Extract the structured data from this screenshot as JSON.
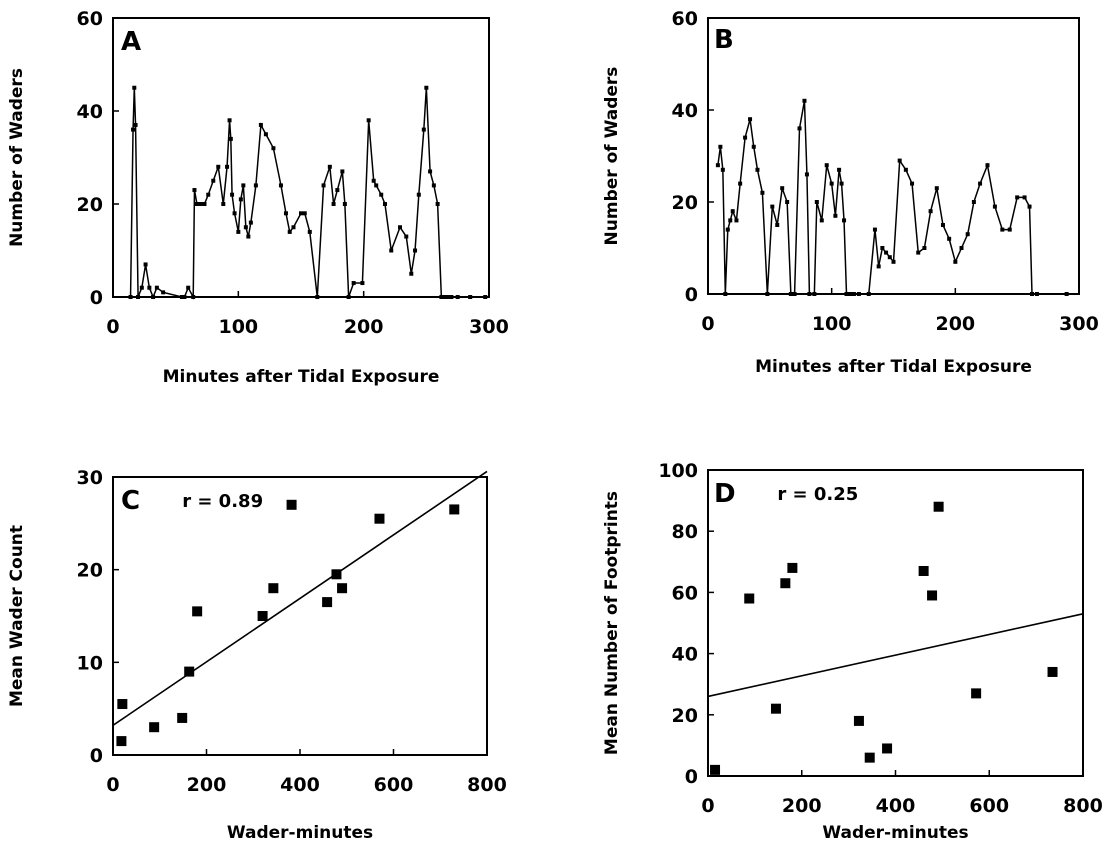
{
  "chart_data": [
    {
      "id": "A",
      "type": "line",
      "panel_label": "A",
      "xlabel": "Minutes after Tidal Exposure",
      "ylabel": "Number of Waders",
      "xlim": [
        0,
        300
      ],
      "ylim": [
        0,
        60
      ],
      "xticks": [
        0,
        100,
        200,
        300
      ],
      "yticks": [
        0,
        20,
        40,
        60
      ],
      "series": [
        {
          "x": [
            14,
            16,
            17,
            18,
            20,
            23,
            26,
            29,
            32,
            35,
            40,
            55,
            57,
            60,
            64,
            65,
            67,
            70,
            73,
            76,
            80,
            84,
            88,
            91,
            93,
            94,
            95,
            97,
            100,
            102,
            104,
            106,
            108,
            110,
            114,
            118,
            122,
            128,
            134,
            138,
            141,
            144,
            150,
            153,
            157,
            163,
            168,
            173,
            176,
            179,
            183,
            185,
            188,
            192,
            199,
            204,
            208,
            210,
            214,
            217,
            222,
            229,
            234,
            238,
            241,
            244,
            248,
            250,
            253,
            256,
            259,
            262,
            264,
            266,
            268,
            270,
            275,
            285,
            297
          ],
          "y": [
            0,
            36,
            45,
            37,
            0,
            2,
            7,
            2,
            0,
            2,
            1,
            0,
            0,
            2,
            0,
            23,
            20,
            20,
            20,
            22,
            25,
            28,
            20,
            28,
            38,
            34,
            22,
            18,
            14,
            21,
            24,
            15,
            13,
            16,
            24,
            37,
            35,
            32,
            24,
            18,
            14,
            15,
            18,
            18,
            14,
            0,
            24,
            28,
            20,
            23,
            27,
            20,
            0,
            3,
            3,
            38,
            25,
            24,
            22,
            20,
            10,
            15,
            13,
            5,
            10,
            22,
            36,
            45,
            27,
            24,
            20,
            0,
            0,
            0,
            0,
            0,
            0,
            0,
            0
          ]
        }
      ]
    },
    {
      "id": "B",
      "type": "line",
      "panel_label": "B",
      "xlabel": "Minutes after Tidal Exposure",
      "ylabel": "Number of Waders",
      "xlim": [
        0,
        300
      ],
      "ylim": [
        0,
        60
      ],
      "xticks": [
        0,
        100,
        200,
        300
      ],
      "yticks": [
        0,
        20,
        40,
        60
      ],
      "series": [
        {
          "x": [
            8,
            10,
            12,
            14,
            16,
            18,
            20,
            23,
            26,
            30,
            34,
            37,
            40,
            44,
            48,
            52,
            56,
            60,
            64,
            67,
            70,
            74,
            78,
            80,
            82,
            86,
            88,
            92,
            96,
            100,
            103,
            106,
            108,
            110,
            112,
            115,
            118,
            122,
            130,
            135,
            138,
            141,
            144,
            147,
            150,
            155,
            160,
            165,
            170,
            175,
            180,
            185,
            190,
            195,
            200,
            205,
            210,
            215,
            220,
            226,
            232,
            238,
            244,
            250,
            256,
            260,
            262,
            266,
            290
          ],
          "y": [
            28,
            32,
            27,
            0,
            14,
            16,
            18,
            16,
            24,
            34,
            38,
            32,
            27,
            22,
            0,
            19,
            15,
            23,
            20,
            0,
            0,
            36,
            42,
            26,
            0,
            0,
            20,
            16,
            28,
            24,
            17,
            27,
            24,
            16,
            0,
            0,
            0,
            0,
            0,
            14,
            6,
            10,
            9,
            8,
            7,
            29,
            27,
            24,
            9,
            10,
            18,
            23,
            15,
            12,
            7,
            10,
            13,
            20,
            24,
            28,
            19,
            14,
            14,
            21,
            21,
            19,
            0,
            0,
            0
          ]
        }
      ]
    },
    {
      "id": "C",
      "type": "scatter",
      "panel_label": "C",
      "annotation": "r = 0.89",
      "xlabel": "Wader-minutes",
      "ylabel": "Mean Wader Count",
      "xlim": [
        0,
        800
      ],
      "ylim": [
        0,
        30
      ],
      "xticks": [
        0,
        200,
        400,
        600,
        800
      ],
      "yticks": [
        0,
        10,
        20,
        30
      ],
      "points": [
        {
          "x": 18,
          "y": 1.5
        },
        {
          "x": 20,
          "y": 5.5
        },
        {
          "x": 88,
          "y": 3
        },
        {
          "x": 148,
          "y": 4
        },
        {
          "x": 163,
          "y": 9
        },
        {
          "x": 180,
          "y": 15.5
        },
        {
          "x": 320,
          "y": 15
        },
        {
          "x": 343,
          "y": 18
        },
        {
          "x": 382,
          "y": 27
        },
        {
          "x": 458,
          "y": 16.5
        },
        {
          "x": 478,
          "y": 19.5
        },
        {
          "x": 490,
          "y": 18
        },
        {
          "x": 570,
          "y": 25.5
        },
        {
          "x": 730,
          "y": 26.5
        }
      ],
      "fit_line": {
        "x": [
          0,
          800
        ],
        "y": [
          3.2,
          30.6
        ]
      }
    },
    {
      "id": "D",
      "type": "scatter",
      "panel_label": "D",
      "annotation": "r = 0.25",
      "xlabel": "Wader-minutes",
      "ylabel": "Mean Number of Footprints",
      "xlim": [
        0,
        800
      ],
      "ylim": [
        0,
        100
      ],
      "xticks": [
        0,
        200,
        400,
        600,
        800
      ],
      "yticks": [
        0,
        20,
        40,
        60,
        80,
        100
      ],
      "points": [
        {
          "x": 15,
          "y": 2
        },
        {
          "x": 88,
          "y": 58
        },
        {
          "x": 145,
          "y": 22
        },
        {
          "x": 165,
          "y": 63
        },
        {
          "x": 180,
          "y": 68
        },
        {
          "x": 322,
          "y": 18
        },
        {
          "x": 345,
          "y": 6
        },
        {
          "x": 382,
          "y": 9
        },
        {
          "x": 460,
          "y": 67
        },
        {
          "x": 478,
          "y": 59
        },
        {
          "x": 492,
          "y": 88
        },
        {
          "x": 572,
          "y": 27
        },
        {
          "x": 735,
          "y": 34
        }
      ],
      "fit_line": {
        "x": [
          0,
          800
        ],
        "y": [
          26,
          53
        ]
      }
    }
  ]
}
